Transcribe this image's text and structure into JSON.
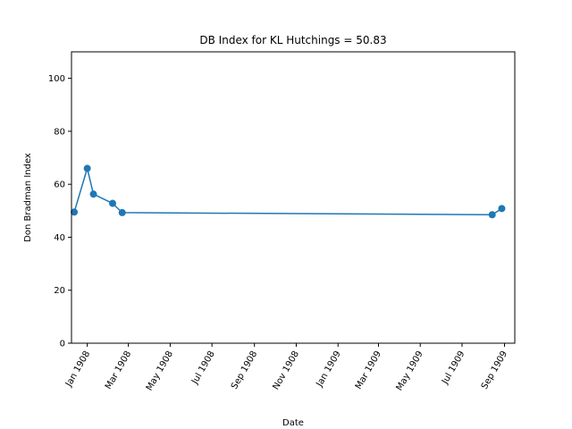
{
  "chart_data": {
    "type": "line",
    "title": "DB Index for KL Hutchings = 50.83",
    "xlabel": "Date",
    "ylabel": "Don Bradman Index",
    "ylim": [
      0,
      110
    ],
    "xlim": [
      "1907-12-09",
      "1909-09-16"
    ],
    "grid": false,
    "y_ticks": [
      0,
      20,
      40,
      60,
      80,
      100
    ],
    "x_ticks": [
      {
        "date": "1908-01-01",
        "label": "Jan 1908"
      },
      {
        "date": "1908-03-01",
        "label": "Mar 1908"
      },
      {
        "date": "1908-05-01",
        "label": "May 1908"
      },
      {
        "date": "1908-07-01",
        "label": "Jul 1908"
      },
      {
        "date": "1908-09-01",
        "label": "Sep 1908"
      },
      {
        "date": "1908-11-01",
        "label": "Nov 1908"
      },
      {
        "date": "1909-01-01",
        "label": "Jan 1909"
      },
      {
        "date": "1909-03-01",
        "label": "Mar 1909"
      },
      {
        "date": "1909-05-01",
        "label": "May 1909"
      },
      {
        "date": "1909-07-01",
        "label": "Jul 1909"
      },
      {
        "date": "1909-09-01",
        "label": "Sep 1909"
      }
    ],
    "series": [
      {
        "name": "KL Hutchings",
        "color": "#1f77b4",
        "points": [
          {
            "x": "1907-12-13",
            "y": 49.5
          },
          {
            "x": "1908-01-01",
            "y": 66.0
          },
          {
            "x": "1908-01-10",
            "y": 56.3
          },
          {
            "x": "1908-02-07",
            "y": 52.8
          },
          {
            "x": "1908-02-21",
            "y": 49.3
          },
          {
            "x": "1909-08-14",
            "y": 48.5
          },
          {
            "x": "1909-08-28",
            "y": 50.83
          }
        ]
      }
    ]
  }
}
